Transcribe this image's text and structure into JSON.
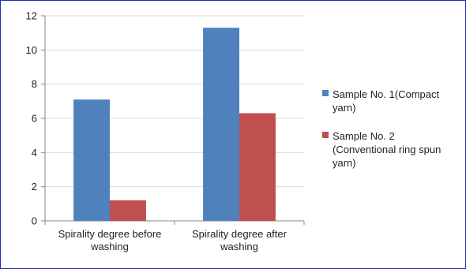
{
  "chart_data": {
    "type": "bar",
    "categories": [
      "Spirality degree before washing",
      "Spirality degree after washing"
    ],
    "category_label_lines": [
      [
        "Spirality degree before",
        "washing"
      ],
      [
        "Spirality degree after",
        "washing"
      ]
    ],
    "series": [
      {
        "name": "Sample No. 1(Compact yarn)",
        "name_lines": [
          "Sample No. 1(Compact",
          "yarn)"
        ],
        "color": "#4f81bd",
        "values": [
          7.1,
          11.3
        ]
      },
      {
        "name": "Sample No. 2 (Conventional ring spun yarn)",
        "name_lines": [
          "Sample No. 2",
          "(Conventional ring spun",
          "yarn)"
        ],
        "color": "#c0504d",
        "values": [
          1.2,
          6.3
        ]
      }
    ],
    "ylim": [
      0,
      12
    ],
    "yticks": [
      0,
      2,
      4,
      6,
      8,
      10,
      12
    ],
    "grid": true,
    "legend_position": "right",
    "title": "",
    "xlabel": "",
    "ylabel": ""
  }
}
